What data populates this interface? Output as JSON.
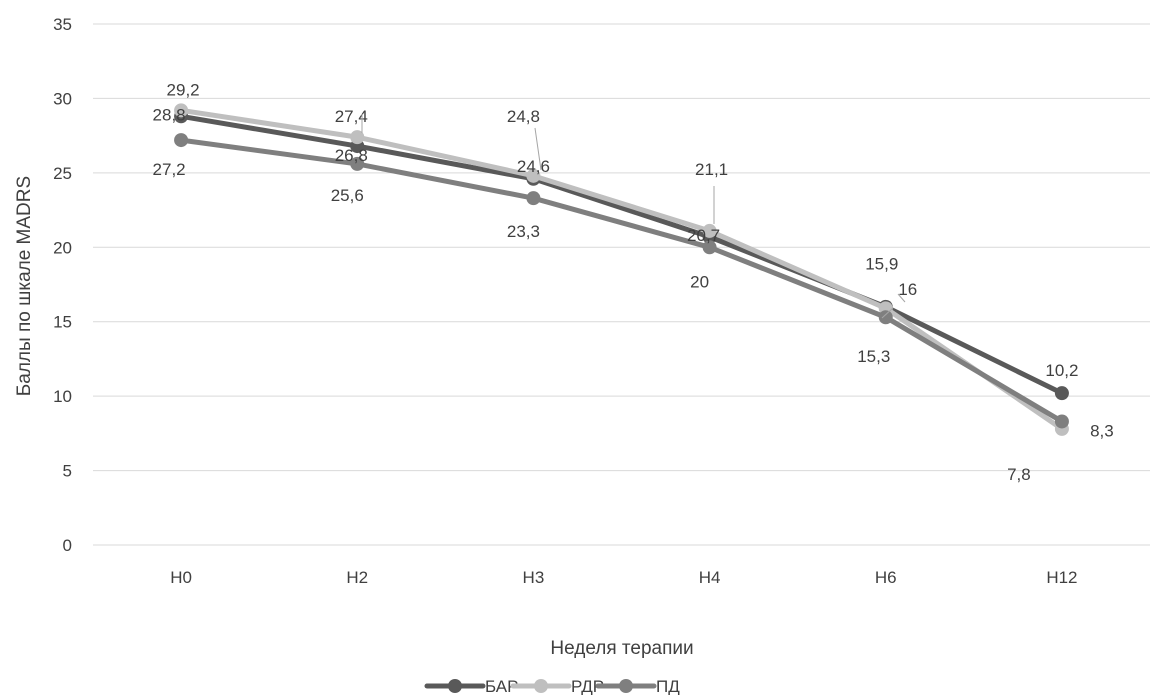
{
  "chart_data": {
    "type": "line",
    "categories": [
      "Н0",
      "Н2",
      "Н3",
      "Н4",
      "Н6",
      "Н12"
    ],
    "series": [
      {
        "name": "БАР",
        "values": [
          28.8,
          26.8,
          24.6,
          20.7,
          16,
          10.2
        ],
        "labels": [
          "28,8",
          "26,8",
          "24,6",
          "20,7",
          "16",
          "10,2"
        ],
        "color": "#595959"
      },
      {
        "name": "РДР",
        "values": [
          29.2,
          27.4,
          24.8,
          21.1,
          15.9,
          7.8
        ],
        "labels": [
          "29,2",
          "27,4",
          "24,8",
          "21,1",
          "15,9",
          "7,8"
        ],
        "color": "#bfbfbf"
      },
      {
        "name": "ПД",
        "values": [
          27.2,
          25.6,
          23.3,
          20,
          15.3,
          8.3
        ],
        "labels": [
          "27,2",
          "25,6",
          "23,3",
          "20",
          "15,3",
          "8,3"
        ],
        "color": "#7f7f7f"
      }
    ],
    "xlabel": "Неделя терапии",
    "ylabel": "Баллы по шкале MADRS",
    "ylim": [
      0,
      35
    ],
    "yticks": [
      0,
      5,
      10,
      15,
      20,
      25,
      30,
      35
    ],
    "grid": true,
    "legend_position": "bottom"
  }
}
